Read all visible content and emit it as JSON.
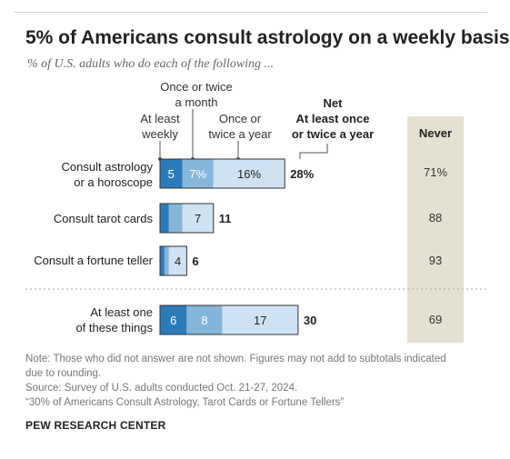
{
  "title": "5% of Americans consult astrology on a weekly basis",
  "subtitle": "% of U.S. adults who do each of the following ...",
  "headers": {
    "weekly": "At least\nweekly",
    "monthly": "Once or twice\na month",
    "yearly": "Once or\ntwice a year",
    "net": "Net\nAt least once\nor twice a year",
    "never": "Never"
  },
  "chart_data": {
    "type": "bar",
    "orientation": "horizontal-stacked",
    "series": [
      {
        "name": "At least weekly",
        "color": "#2b7bb9"
      },
      {
        "name": "Once or twice a month",
        "color": "#85b6da"
      },
      {
        "name": "Once or twice a year",
        "color": "#cfe2f3"
      }
    ],
    "rows": [
      {
        "category": "Consult astrology\nor a horoscope",
        "values": [
          5,
          7,
          16
        ],
        "labels": [
          "5",
          "7%",
          "16%"
        ],
        "net": "28%",
        "never": "71%"
      },
      {
        "category": "Consult tarot cards",
        "values": [
          2,
          3,
          7
        ],
        "labels": [
          "",
          "",
          "7"
        ],
        "net": "11",
        "never": "88"
      },
      {
        "category": "Consult a fortune teller",
        "values": [
          1,
          1,
          4
        ],
        "labels": [
          "",
          "",
          "4"
        ],
        "net": "6",
        "never": "93"
      },
      {
        "category": "At least one\nof these things",
        "values": [
          6,
          8,
          17
        ],
        "labels": [
          "6",
          "8",
          "17"
        ],
        "net": "30",
        "never": "69"
      }
    ]
  },
  "notes": [
    "Note: Those who did not answer are not shown. Figures may not add to subtotals indicated",
    "due to rounding.",
    "Source: Survey of U.S. adults conducted Oct. 21-27, 2024.",
    "“30% of Americans Consult Astrology, Tarot Cards or Fortune Tellers”"
  ],
  "brand": "PEW RESEARCH CENTER"
}
